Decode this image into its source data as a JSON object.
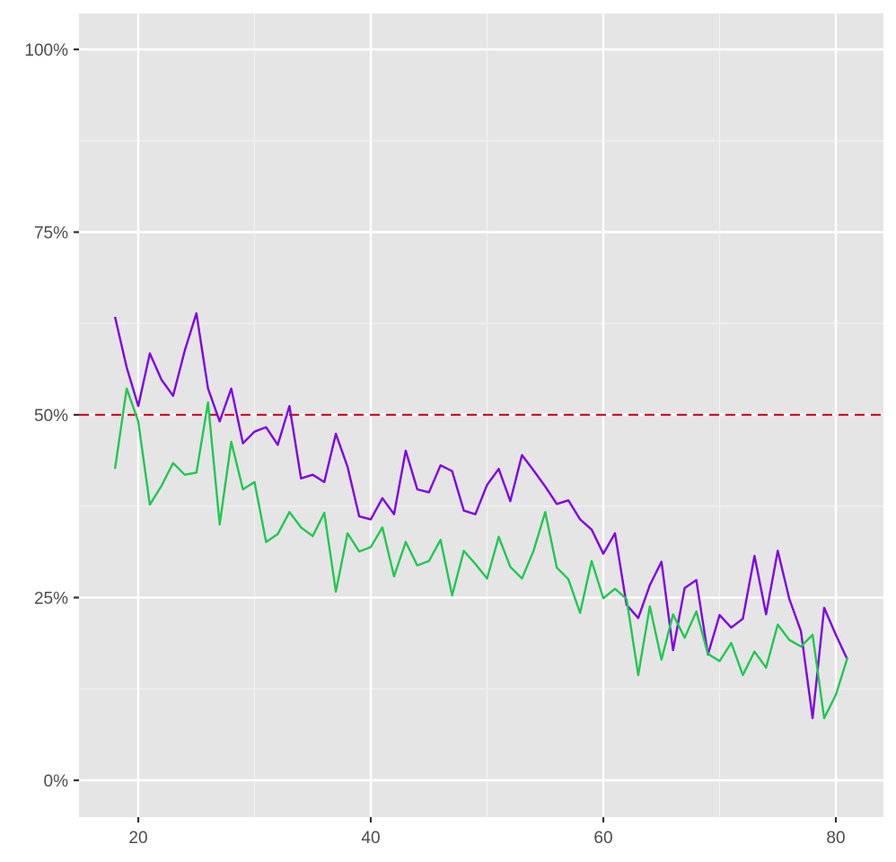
{
  "chart_data": {
    "type": "line",
    "title": "",
    "xlabel": "",
    "ylabel": "",
    "xlim": [
      15,
      84
    ],
    "ylim": [
      -5,
      105
    ],
    "grid": true,
    "legend": null,
    "x_ticks": [
      20,
      40,
      60,
      80
    ],
    "x_tick_labels": [
      "20",
      "40",
      "60",
      "80"
    ],
    "y_ticks": [
      0,
      25,
      50,
      75,
      100
    ],
    "y_tick_labels": [
      "0%",
      "25%",
      "50%",
      "75%",
      "100%"
    ],
    "x": [
      18,
      19,
      20,
      21,
      22,
      23,
      24,
      25,
      26,
      27,
      28,
      29,
      30,
      31,
      32,
      33,
      34,
      35,
      36,
      37,
      38,
      39,
      40,
      41,
      42,
      43,
      44,
      45,
      46,
      47,
      48,
      49,
      50,
      51,
      52,
      53,
      54,
      55,
      56,
      57,
      58,
      59,
      60,
      61,
      62,
      63,
      64,
      65,
      66,
      67,
      68,
      69,
      70,
      71,
      72,
      73,
      74,
      75,
      76,
      77,
      78,
      79,
      80,
      81
    ],
    "series": [
      {
        "name": "purple-series",
        "color": "#8000e6",
        "values": [
          63.4,
          56.5,
          51.2,
          58.4,
          54.8,
          52.6,
          58.8,
          63.9,
          53.6,
          49.1,
          53.6,
          46.1,
          47.7,
          48.3,
          45.9,
          51.2,
          41.3,
          41.8,
          40.8,
          47.4,
          42.9,
          36.1,
          35.7,
          38.6,
          36.4,
          45.1,
          39.8,
          39.4,
          43.1,
          42.3,
          36.9,
          36.4,
          40.4,
          42.6,
          38.2,
          44.5,
          42.4,
          40.2,
          37.8,
          38.3,
          35.7,
          34.3,
          31.0,
          33.8,
          24.0,
          22.2,
          26.7,
          29.9,
          17.8,
          26.3,
          27.4,
          17.2,
          22.6,
          20.9,
          22.1,
          30.7,
          22.7,
          31.4,
          24.8,
          20.4,
          8.5,
          23.6,
          19.9,
          16.5
        ]
      },
      {
        "name": "green-series",
        "color": "#1ec94f",
        "values": [
          42.6,
          53.6,
          49.1,
          37.7,
          40.3,
          43.4,
          41.8,
          42.1,
          51.7,
          35.0,
          46.3,
          39.8,
          40.8,
          32.6,
          33.7,
          36.7,
          34.6,
          33.4,
          36.6,
          25.8,
          33.8,
          31.3,
          31.9,
          34.6,
          27.9,
          32.6,
          29.4,
          30.0,
          32.9,
          25.3,
          31.4,
          29.6,
          27.6,
          33.3,
          29.2,
          27.6,
          31.4,
          36.7,
          29.1,
          27.5,
          22.9,
          30.0,
          24.9,
          26.2,
          24.8,
          14.4,
          23.8,
          16.5,
          22.7,
          19.5,
          23.1,
          17.3,
          16.3,
          18.8,
          14.4,
          17.6,
          15.4,
          21.3,
          19.2,
          18.3,
          19.9,
          8.5,
          11.7,
          16.8
        ]
      }
    ],
    "annotations": [
      {
        "type": "hline",
        "y": 50,
        "style": "dashed",
        "color": "#c8102e"
      }
    ]
  },
  "style": {
    "panel_bg": "#e5e5e5",
    "grid_major": "#ffffff",
    "grid_minor": "#f2f2f2",
    "tick_color": "#333333",
    "label_color": "#4d4d4d"
  }
}
